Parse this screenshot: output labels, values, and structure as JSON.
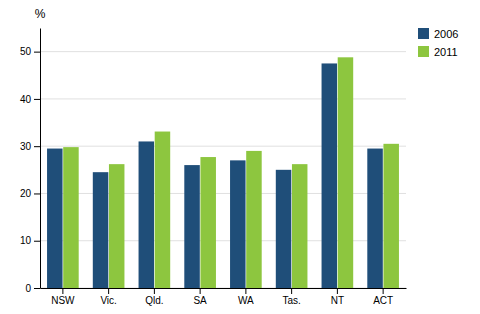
{
  "chart_data": {
    "type": "bar",
    "categories": [
      "NSW",
      "Vic.",
      "Qld.",
      "SA",
      "WA",
      "Tas.",
      "NT",
      "ACT"
    ],
    "series": [
      {
        "name": "2006",
        "color": "#1F4E79",
        "values": [
          29.5,
          24.5,
          31.0,
          26.0,
          27.0,
          25.0,
          47.5,
          29.5
        ]
      },
      {
        "name": "2011",
        "color": "#8DC63F",
        "values": [
          29.8,
          26.2,
          33.1,
          27.7,
          29.0,
          26.2,
          48.8,
          30.5
        ]
      }
    ],
    "ylabel": "%",
    "ylim": [
      0,
      55
    ],
    "yticks": [
      0,
      10,
      20,
      30,
      40,
      50
    ],
    "grid": true,
    "legend": "upper right"
  }
}
